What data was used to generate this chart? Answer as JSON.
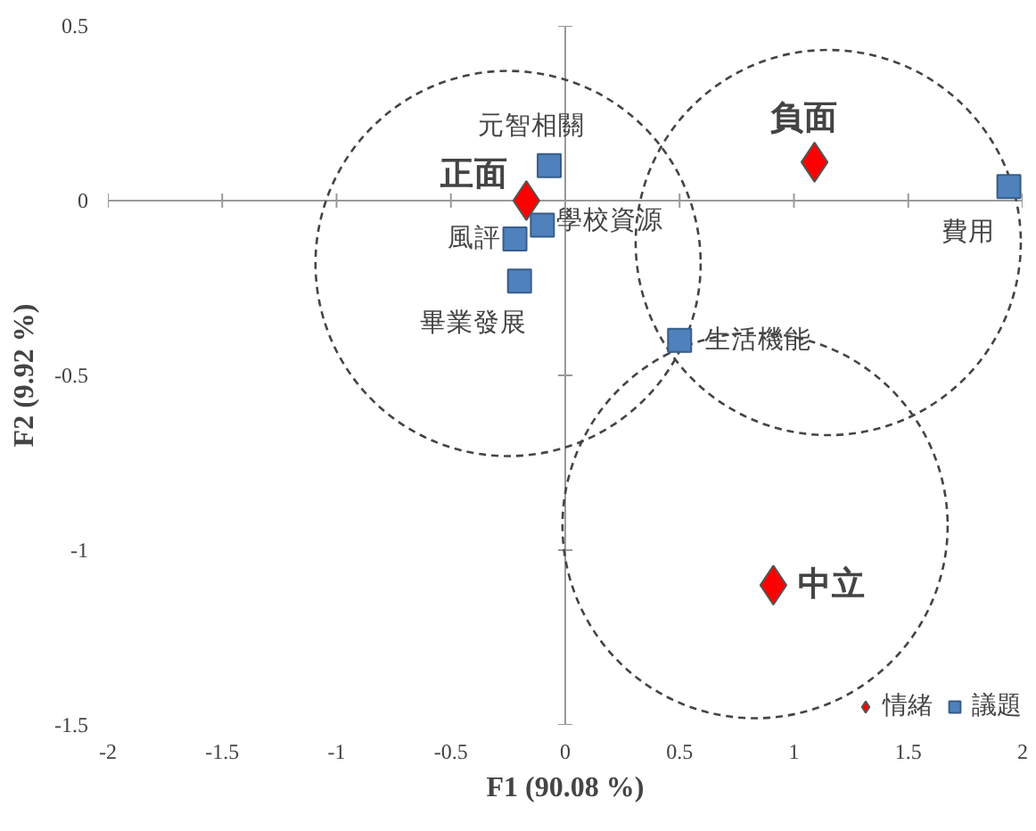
{
  "chart_data": {
    "type": "scatter",
    "xlabel": "F1 (90.08 %)",
    "ylabel": "F2 (9.92 %)",
    "xlim": [
      -2,
      2
    ],
    "ylim": [
      -1.5,
      0.5
    ],
    "xticks": [
      -2,
      -1.5,
      -1,
      -0.5,
      0,
      0.5,
      1,
      1.5,
      2
    ],
    "yticks": [
      -1.5,
      -1,
      -0.5,
      0,
      0.5
    ],
    "legend": "bottom right",
    "series": [
      {
        "name": "情緒",
        "color": "#ff0000",
        "marker": "diamond",
        "x": [
          -0.17,
          1.09,
          0.91
        ],
        "values": [
          0.0,
          0.11,
          -1.1
        ]
      },
      {
        "name": "議題",
        "color": "#4f81bd",
        "marker": "square",
        "x": [
          -0.07,
          -0.1,
          -0.22,
          -0.2,
          0.5,
          1.94
        ],
        "values": [
          0.1,
          -0.07,
          -0.11,
          -0.23,
          -0.4,
          0.04
        ]
      }
    ],
    "annotations": [
      {
        "text": "正面",
        "x": -0.17,
        "y": 0.0
      },
      {
        "text": "負面",
        "x": 1.09,
        "y": 0.11
      },
      {
        "text": "中立",
        "x": 0.91,
        "y": -1.1
      },
      {
        "text": "元智相關",
        "x": -0.07,
        "y": 0.1
      },
      {
        "text": "學校資源",
        "x": -0.1,
        "y": -0.07
      },
      {
        "text": "風評",
        "x": -0.22,
        "y": -0.11
      },
      {
        "text": "畢業發展",
        "x": -0.2,
        "y": -0.23
      },
      {
        "text": "生活機能",
        "x": 0.5,
        "y": -0.4
      },
      {
        "text": "費用",
        "x": 1.94,
        "y": 0.04
      }
    ]
  }
}
